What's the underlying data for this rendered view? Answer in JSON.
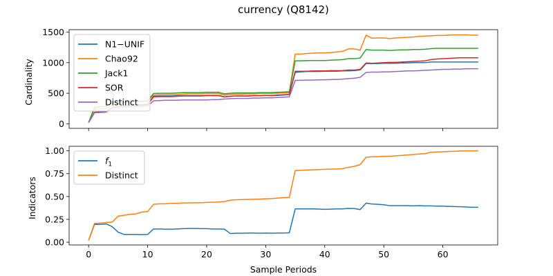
{
  "title": "currency (Q8142)",
  "chart_data": [
    {
      "type": "line",
      "ylabel": "Cardinality",
      "xlabel": "",
      "xlim": [
        -3.3,
        69.3
      ],
      "ylim": [
        -75,
        1540
      ],
      "xticks": [
        0,
        10,
        20,
        30,
        40,
        50,
        60
      ],
      "yticks": [
        0,
        500,
        1000,
        1500
      ],
      "ytick_labels": [
        "0",
        "500",
        "1000",
        "1500"
      ],
      "legend": "top-left",
      "x": [
        0,
        1,
        2,
        3,
        4,
        5,
        6,
        7,
        8,
        9,
        10,
        11,
        12,
        13,
        14,
        15,
        16,
        17,
        18,
        19,
        20,
        21,
        22,
        23,
        24,
        25,
        26,
        27,
        28,
        29,
        30,
        31,
        32,
        33,
        34,
        35,
        36,
        37,
        38,
        39,
        40,
        41,
        42,
        43,
        44,
        45,
        46,
        47,
        48,
        49,
        50,
        51,
        52,
        53,
        54,
        55,
        56,
        57,
        58,
        59,
        60,
        61,
        62,
        63,
        64,
        65,
        66
      ],
      "series": [
        {
          "name": "N1−UNIF",
          "color": "#1f77b4",
          "values": [
            20,
            190,
            195,
            200,
            270,
            280,
            300,
            305,
            310,
            315,
            320,
            450,
            455,
            455,
            455,
            460,
            460,
            460,
            460,
            460,
            465,
            465,
            465,
            440,
            450,
            455,
            455,
            455,
            460,
            460,
            465,
            460,
            465,
            470,
            475,
            840,
            850,
            855,
            855,
            855,
            860,
            860,
            860,
            865,
            865,
            870,
            880,
            985,
            985,
            985,
            990,
            990,
            990,
            995,
            995,
            1000,
            1000,
            1000,
            1010,
            1010,
            1010,
            1010,
            1010,
            1010,
            1010,
            1010,
            1010
          ]
        },
        {
          "name": "Chao92",
          "color": "#ff7f0e",
          "values": [
            20,
            240,
            245,
            250,
            330,
            340,
            350,
            355,
            360,
            365,
            370,
            470,
            475,
            475,
            475,
            480,
            485,
            490,
            490,
            490,
            495,
            495,
            495,
            470,
            480,
            485,
            485,
            490,
            490,
            495,
            495,
            495,
            500,
            505,
            510,
            1140,
            1140,
            1150,
            1155,
            1160,
            1160,
            1165,
            1175,
            1185,
            1225,
            1225,
            1205,
            1450,
            1400,
            1405,
            1405,
            1395,
            1405,
            1410,
            1415,
            1420,
            1430,
            1435,
            1440,
            1445,
            1445,
            1450,
            1455,
            1455,
            1455,
            1450,
            1450
          ]
        },
        {
          "name": "Jack1",
          "color": "#2ca02c",
          "values": [
            20,
            270,
            280,
            290,
            340,
            350,
            355,
            360,
            365,
            370,
            375,
            495,
            500,
            500,
            500,
            505,
            510,
            510,
            510,
            510,
            515,
            515,
            515,
            490,
            500,
            505,
            505,
            505,
            505,
            510,
            510,
            510,
            515,
            520,
            525,
            1030,
            1030,
            1035,
            1035,
            1035,
            1035,
            1040,
            1045,
            1050,
            1065,
            1065,
            1075,
            1215,
            1205,
            1205,
            1205,
            1200,
            1205,
            1210,
            1210,
            1215,
            1215,
            1220,
            1230,
            1235,
            1235,
            1235,
            1235,
            1235,
            1235,
            1235,
            1235
          ]
        },
        {
          "name": "SOR",
          "color": "#d62728",
          "values": [
            20,
            185,
            190,
            195,
            270,
            280,
            290,
            295,
            300,
            305,
            310,
            440,
            445,
            445,
            445,
            450,
            455,
            455,
            455,
            455,
            460,
            460,
            460,
            440,
            450,
            455,
            455,
            455,
            460,
            460,
            465,
            465,
            470,
            475,
            480,
            860,
            860,
            860,
            865,
            865,
            865,
            870,
            870,
            870,
            880,
            880,
            890,
            995,
            990,
            995,
            1000,
            1005,
            1005,
            1010,
            1015,
            1020,
            1025,
            1030,
            1050,
            1060,
            1065,
            1070,
            1075,
            1080,
            1080,
            1080,
            1080
          ]
        },
        {
          "name": "Distinct",
          "color": "#9467bd",
          "values": [
            20,
            180,
            185,
            190,
            260,
            265,
            270,
            275,
            280,
            285,
            290,
            375,
            380,
            385,
            385,
            385,
            390,
            390,
            390,
            390,
            390,
            395,
            395,
            405,
            410,
            415,
            415,
            415,
            420,
            420,
            425,
            425,
            430,
            435,
            440,
            710,
            712,
            714,
            716,
            718,
            720,
            722,
            725,
            730,
            740,
            745,
            760,
            840,
            845,
            845,
            850,
            850,
            855,
            860,
            865,
            865,
            870,
            875,
            880,
            885,
            890,
            890,
            895,
            895,
            900,
            900,
            900
          ]
        }
      ]
    },
    {
      "type": "line",
      "ylabel": "Indicators",
      "xlabel": "Sample Periods",
      "xlim": [
        -3.3,
        69.3
      ],
      "ylim": [
        -0.03,
        1.05
      ],
      "xticks": [
        0,
        10,
        20,
        30,
        40,
        50,
        60
      ],
      "xtick_labels": [
        "0",
        "10",
        "20",
        "30",
        "40",
        "50",
        "60"
      ],
      "yticks": [
        0.0,
        0.25,
        0.5,
        0.75,
        1.0
      ],
      "ytick_labels": [
        "0.00",
        "0.25",
        "0.50",
        "0.75",
        "1.00"
      ],
      "legend": "top-left",
      "x": [
        0,
        1,
        2,
        3,
        4,
        5,
        6,
        7,
        8,
        9,
        10,
        11,
        12,
        13,
        14,
        15,
        16,
        17,
        18,
        19,
        20,
        21,
        22,
        23,
        24,
        25,
        26,
        27,
        28,
        29,
        30,
        31,
        32,
        33,
        34,
        35,
        36,
        37,
        38,
        39,
        40,
        41,
        42,
        43,
        44,
        45,
        46,
        47,
        48,
        49,
        50,
        51,
        52,
        53,
        54,
        55,
        56,
        57,
        58,
        59,
        60,
        61,
        62,
        63,
        64,
        65,
        66
      ],
      "series": [
        {
          "name": "f1",
          "color": "#1f77b4",
          "values": [
            0.02,
            0.195,
            0.195,
            0.2,
            0.17,
            0.11,
            0.085,
            0.085,
            0.085,
            0.083,
            0.085,
            0.145,
            0.145,
            0.143,
            0.143,
            0.145,
            0.148,
            0.15,
            0.15,
            0.148,
            0.148,
            0.145,
            0.145,
            0.143,
            0.095,
            0.098,
            0.098,
            0.1,
            0.1,
            0.098,
            0.1,
            0.098,
            0.1,
            0.1,
            0.103,
            0.365,
            0.365,
            0.365,
            0.365,
            0.363,
            0.36,
            0.362,
            0.365,
            0.365,
            0.37,
            0.368,
            0.357,
            0.428,
            0.418,
            0.415,
            0.41,
            0.4,
            0.4,
            0.4,
            0.4,
            0.398,
            0.4,
            0.398,
            0.398,
            0.395,
            0.395,
            0.392,
            0.39,
            0.388,
            0.385,
            0.383,
            0.383
          ]
        },
        {
          "name": "Distinct",
          "color": "#ff7f0e",
          "values": [
            0.02,
            0.205,
            0.21,
            0.215,
            0.22,
            0.285,
            0.295,
            0.305,
            0.31,
            0.33,
            0.335,
            0.415,
            0.42,
            0.42,
            0.425,
            0.425,
            0.43,
            0.43,
            0.432,
            0.432,
            0.435,
            0.437,
            0.44,
            0.445,
            0.46,
            0.465,
            0.467,
            0.468,
            0.47,
            0.472,
            0.475,
            0.478,
            0.483,
            0.488,
            0.49,
            0.785,
            0.787,
            0.79,
            0.792,
            0.795,
            0.798,
            0.8,
            0.802,
            0.805,
            0.82,
            0.83,
            0.85,
            0.93,
            0.935,
            0.937,
            0.94,
            0.94,
            0.945,
            0.95,
            0.955,
            0.96,
            0.965,
            0.97,
            0.985,
            0.988,
            0.99,
            0.993,
            0.995,
            0.998,
            1.0,
            1.0,
            1.0
          ]
        }
      ]
    }
  ]
}
